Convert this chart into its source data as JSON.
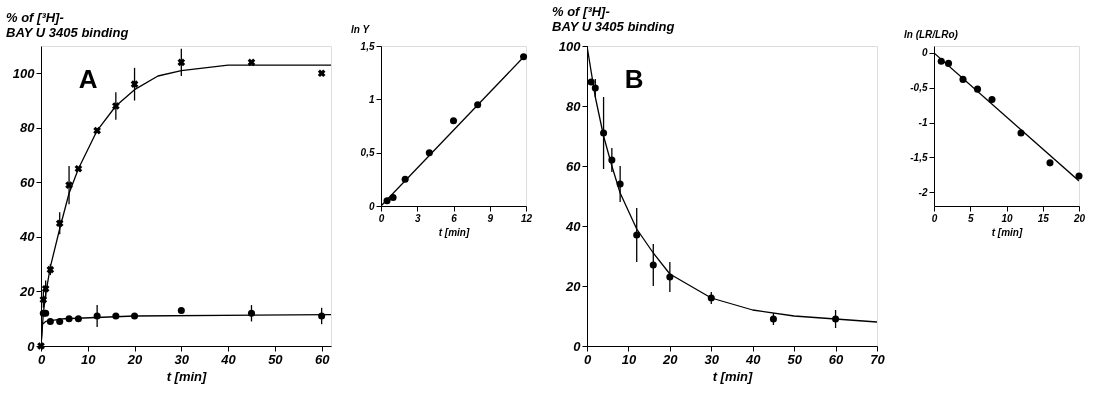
{
  "chart_data": [
    {
      "type": "scatter",
      "ylabel": "% of [³H]-\nBAY U 3405 binding",
      "xlabel": "t [min]",
      "annotations": [
        "A"
      ],
      "xlim": [
        0,
        62
      ],
      "xticks": [
        0,
        10,
        20,
        30,
        40,
        50,
        60
      ],
      "ylim": [
        0,
        110
      ],
      "yticks": [
        0,
        20,
        40,
        60,
        80,
        100
      ],
      "grid": false,
      "line_style": "solid",
      "series": [
        {
          "type": "scatter",
          "marker": "cross",
          "color": "#000000",
          "x": [
            0,
            0.5,
            1,
            2,
            4,
            6,
            8,
            12,
            16,
            20,
            30,
            45,
            60
          ],
          "values": [
            0,
            17,
            21,
            28,
            45,
            59,
            65,
            79,
            88,
            96,
            104,
            104,
            100
          ],
          "errors": [
            null,
            3,
            3,
            2,
            4,
            7,
            null,
            null,
            5,
            6,
            5,
            null,
            null
          ]
        },
        {
          "type": "scatter",
          "marker": "circle",
          "color": "#000000",
          "x": [
            0.5,
            1,
            2,
            4,
            6,
            8,
            12,
            16,
            20,
            30,
            45,
            60
          ],
          "values": [
            12,
            12,
            9,
            9,
            10,
            10,
            11,
            11,
            11,
            13,
            12,
            11
          ],
          "errors": [
            null,
            null,
            null,
            null,
            null,
            null,
            4,
            null,
            null,
            null,
            3,
            3
          ]
        },
        {
          "type": "line",
          "color": "#000000",
          "x": [
            0,
            0.5,
            1,
            2,
            4,
            6,
            8,
            12,
            16,
            20,
            25,
            30,
            40,
            50,
            62
          ],
          "values": [
            0,
            12,
            19,
            29,
            43,
            56,
            65,
            79,
            88,
            94,
            99,
            101,
            103,
            103,
            103
          ]
        },
        {
          "type": "line",
          "color": "#000000",
          "x": [
            0,
            0.3,
            1,
            5,
            20,
            62
          ],
          "values": [
            0,
            8,
            9,
            10,
            11,
            11.5
          ]
        }
      ]
    },
    {
      "type": "scatter",
      "ylabel": "ln Y",
      "xlabel": "t [min]",
      "xlim": [
        0,
        12
      ],
      "xticks": [
        0,
        3,
        6,
        9,
        12
      ],
      "ylim": [
        0,
        1.5
      ],
      "yticks": [
        0,
        {
          "value": 0.5,
          "label": "0,5"
        },
        1,
        {
          "value": 1.5,
          "label": "1,5"
        }
      ],
      "grid": false,
      "line_style": "solid",
      "series": [
        {
          "type": "scatter",
          "marker": "circle",
          "color": "#000000",
          "x": [
            0.5,
            1,
            2,
            4,
            6,
            8,
            11.8
          ],
          "values": [
            0.05,
            0.08,
            0.25,
            0.5,
            0.8,
            0.95,
            1.4
          ]
        },
        {
          "type": "line",
          "color": "#000000",
          "x": [
            0,
            12
          ],
          "values": [
            0,
            1.42
          ]
        }
      ]
    },
    {
      "type": "scatter",
      "ylabel": "% of [³H]-\nBAY U 3405 binding",
      "xlabel": "t [min]",
      "annotations": [
        "B"
      ],
      "xlim": [
        0,
        70
      ],
      "xticks": [
        0,
        10,
        20,
        30,
        40,
        50,
        60,
        70
      ],
      "ylim": [
        0,
        100
      ],
      "yticks": [
        0,
        20,
        40,
        60,
        80,
        100
      ],
      "grid": false,
      "line_style": "solid",
      "series": [
        {
          "type": "scatter",
          "marker": "circle",
          "color": "#000000",
          "x": [
            1,
            2,
            4,
            6,
            8,
            12,
            16,
            20,
            30,
            45,
            60
          ],
          "values": [
            88,
            86,
            71,
            62,
            54,
            37,
            27,
            23,
            16,
            9,
            9
          ],
          "errors": [
            null,
            3,
            12,
            4,
            6,
            9,
            7,
            5,
            2,
            2,
            3
          ]
        },
        {
          "type": "line",
          "color": "#000000",
          "x": [
            0,
            2,
            4,
            6,
            8,
            12,
            16,
            20,
            30,
            40,
            50,
            60,
            70
          ],
          "values": [
            100,
            83,
            70,
            60,
            51,
            39,
            31,
            24,
            16,
            12,
            10,
            9,
            8
          ]
        }
      ]
    },
    {
      "type": "scatter",
      "ylabel": "ln (LR/LRo)",
      "xlabel": "t [min]",
      "xlim": [
        0,
        20
      ],
      "xticks": [
        0,
        5,
        10,
        15,
        20
      ],
      "ylim": [
        -2.2,
        0.1
      ],
      "yticks": [
        0,
        {
          "value": -0.5,
          "label": "-0,5"
        },
        -1,
        {
          "value": -1.5,
          "label": "-1,5"
        },
        -2
      ],
      "grid": false,
      "line_style": "solid",
      "series": [
        {
          "type": "scatter",
          "marker": "circle",
          "color": "#000000",
          "x": [
            1,
            2,
            4,
            6,
            8,
            12,
            16,
            20
          ],
          "values": [
            -0.12,
            -0.15,
            -0.38,
            -0.52,
            -0.67,
            -1.15,
            -1.58,
            -1.77
          ]
        },
        {
          "type": "line",
          "color": "#000000",
          "x": [
            0,
            20
          ],
          "values": [
            0,
            -1.84
          ]
        }
      ]
    }
  ]
}
